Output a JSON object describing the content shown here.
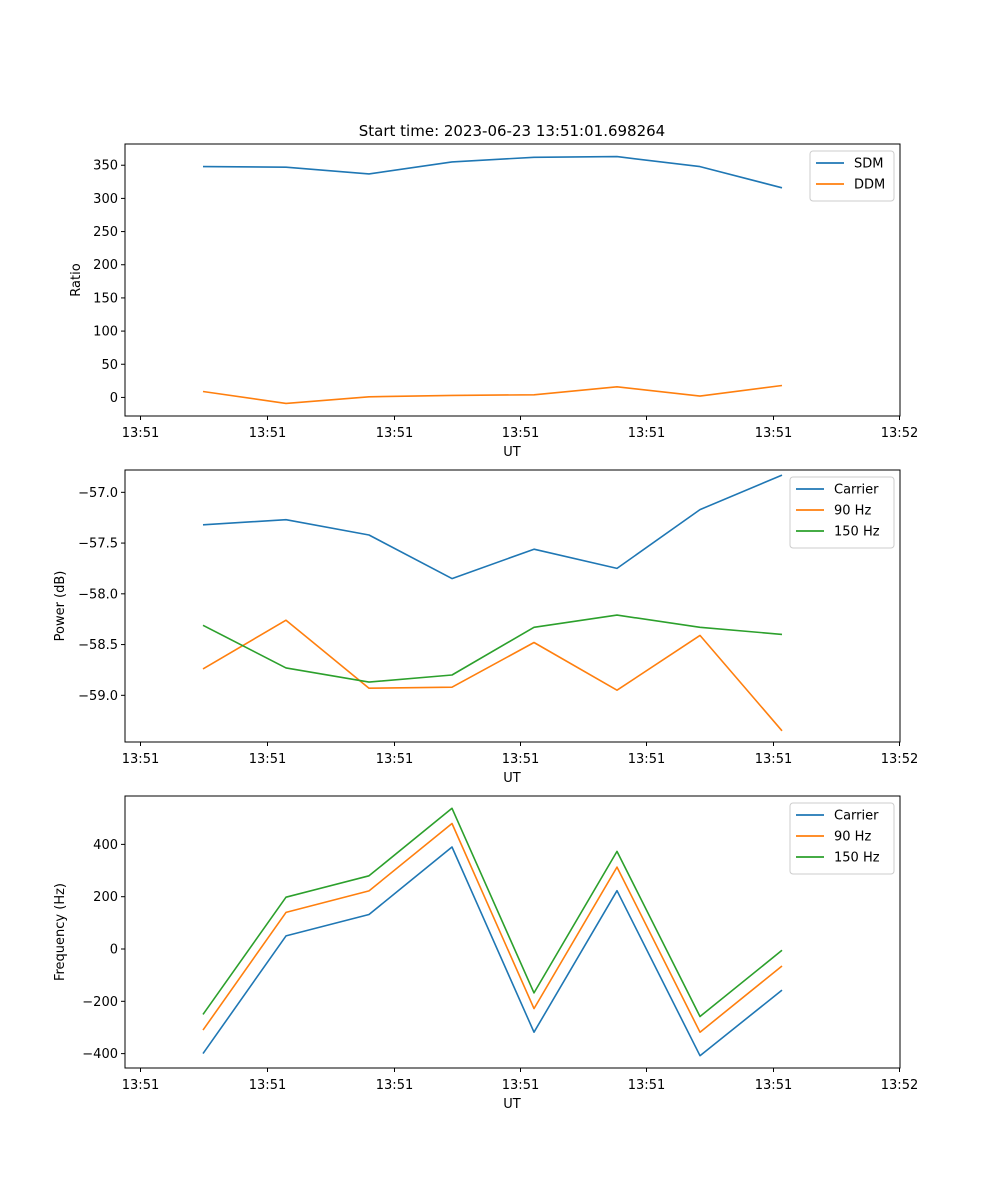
{
  "figure": {
    "title": "Start time: 2023-06-23 13:51:01.698264"
  },
  "colors": {
    "blue": "#1f77b4",
    "orange": "#ff7f0e",
    "green": "#2ca02c"
  },
  "chart_data": [
    {
      "type": "line",
      "title": "Start time: 2023-06-23 13:51:01.698264",
      "xlabel": "UT",
      "ylabel": "Ratio",
      "x_tick_labels": [
        "13:51",
        "13:51",
        "13:51",
        "13:51",
        "13:51",
        "13:51",
        "13:52"
      ],
      "y_ticks": [
        0,
        50,
        100,
        150,
        200,
        250,
        300,
        350
      ],
      "ylim": [
        -28,
        382
      ],
      "legend_position": "top-right",
      "grid": false,
      "points_per_series": 8,
      "series": [
        {
          "name": "SDM",
          "color": "#1f77b4",
          "values": [
            348,
            347,
            337,
            355,
            362,
            363,
            348,
            316
          ]
        },
        {
          "name": "DDM",
          "color": "#ff7f0e",
          "values": [
            9,
            -9,
            1,
            3,
            4,
            16,
            2,
            18
          ]
        }
      ]
    },
    {
      "type": "line",
      "title": "",
      "xlabel": "UT",
      "ylabel": "Power (dB)",
      "x_tick_labels": [
        "13:51",
        "13:51",
        "13:51",
        "13:51",
        "13:51",
        "13:51",
        "13:52"
      ],
      "y_ticks": [
        -59.0,
        -58.5,
        -58.0,
        -57.5,
        -57.0
      ],
      "y_tick_labels": [
        "−59.0",
        "−58.5",
        "−58.0",
        "−57.5",
        "−57.0"
      ],
      "ylim": [
        -59.46,
        -56.78
      ],
      "legend_position": "top-right",
      "grid": false,
      "points_per_series": 8,
      "series": [
        {
          "name": "Carrier",
          "color": "#1f77b4",
          "values": [
            -57.32,
            -57.27,
            -57.42,
            -57.85,
            -57.56,
            -57.75,
            -57.17,
            -56.83
          ]
        },
        {
          "name": "90 Hz",
          "color": "#ff7f0e",
          "values": [
            -58.74,
            -58.26,
            -58.93,
            -58.92,
            -58.48,
            -58.95,
            -58.41,
            -59.35
          ]
        },
        {
          "name": "150 Hz",
          "color": "#2ca02c",
          "values": [
            -58.31,
            -58.73,
            -58.87,
            -58.8,
            -58.33,
            -58.21,
            -58.33,
            -58.4
          ]
        }
      ]
    },
    {
      "type": "line",
      "title": "",
      "xlabel": "UT",
      "ylabel": "Frequency (Hz)",
      "x_tick_labels": [
        "13:51",
        "13:51",
        "13:51",
        "13:51",
        "13:51",
        "13:51",
        "13:52"
      ],
      "y_ticks": [
        -400,
        -200,
        0,
        200,
        400
      ],
      "y_tick_labels": [
        "−400",
        "−200",
        "0",
        "200",
        "400"
      ],
      "ylim": [
        -455,
        585
      ],
      "legend_position": "top-right",
      "grid": false,
      "points_per_series": 8,
      "series": [
        {
          "name": "Carrier",
          "color": "#1f77b4",
          "values": [
            -400,
            50,
            132,
            390,
            -318,
            223,
            -408,
            -157
          ]
        },
        {
          "name": "90 Hz",
          "color": "#ff7f0e",
          "values": [
            -310,
            140,
            222,
            480,
            -228,
            313,
            -318,
            -65
          ]
        },
        {
          "name": "150 Hz",
          "color": "#2ca02c",
          "values": [
            -250,
            198,
            280,
            538,
            -168,
            373,
            -258,
            -5
          ]
        }
      ]
    }
  ]
}
